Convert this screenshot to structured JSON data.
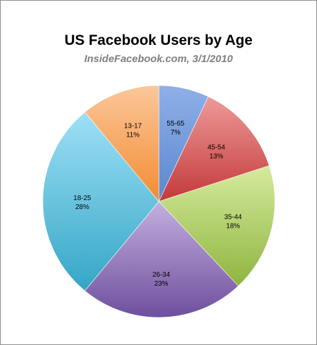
{
  "chart_data": {
    "type": "pie",
    "title": "US Facebook Users by Age",
    "subtitle": "InsideFacebook.com, 3/1/2010",
    "slices": [
      {
        "label": "55-65",
        "pct_text": "7%",
        "value": 7,
        "colors": [
          "#8fb0e8",
          "#5b86cf"
        ]
      },
      {
        "label": "45-54",
        "pct_text": "13%",
        "value": 13,
        "colors": [
          "#ee9a99",
          "#c3393a"
        ]
      },
      {
        "label": "35-44",
        "pct_text": "18%",
        "value": 18,
        "colors": [
          "#d6eb9e",
          "#8fb43f"
        ]
      },
      {
        "label": "26-34",
        "pct_text": "23%",
        "value": 23,
        "colors": [
          "#c3b0de",
          "#6f4f9e"
        ]
      },
      {
        "label": "18-25",
        "pct_text": "28%",
        "value": 28,
        "colors": [
          "#9ee0f6",
          "#34a6c6"
        ]
      },
      {
        "label": "13-17",
        "pct_text": "11%",
        "value": 11,
        "colors": [
          "#fbc79a",
          "#f38c32"
        ]
      }
    ]
  }
}
